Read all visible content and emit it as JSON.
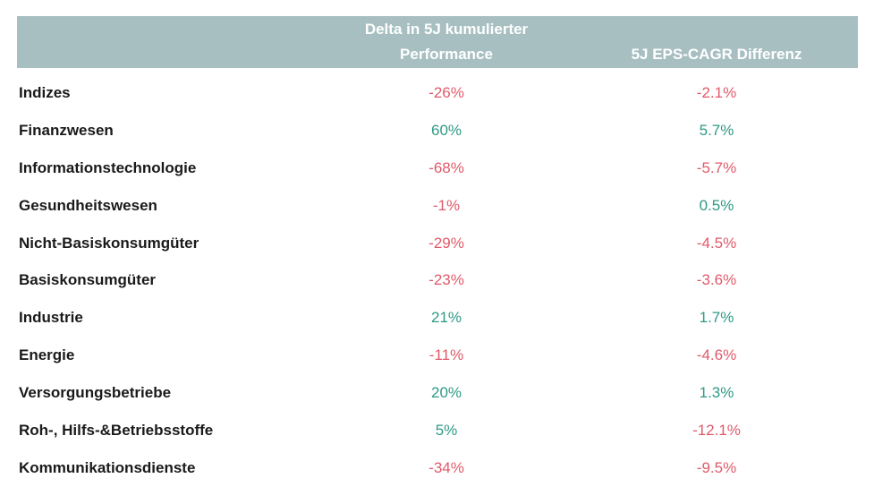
{
  "colors": {
    "header_bg": "#a8bfc2",
    "negative": "#e05a6a",
    "positive": "#2e9a86"
  },
  "table": {
    "headers": {
      "col1": "",
      "col2_line1": "Delta in 5J kumulierter",
      "col2_line2": "Performance",
      "col3": "5J EPS-CAGR Differenz"
    },
    "rows": [
      {
        "name": "Indizes",
        "performance": "-26%",
        "perf_sign": "neg",
        "eps": "-2.1%",
        "eps_sign": "neg"
      },
      {
        "name": "Finanzwesen",
        "performance": "60%",
        "perf_sign": "pos",
        "eps": "5.7%",
        "eps_sign": "pos"
      },
      {
        "name": "Informationstechnologie",
        "performance": "-68%",
        "perf_sign": "neg",
        "eps": "-5.7%",
        "eps_sign": "neg"
      },
      {
        "name": "Gesundheitswesen",
        "performance": "-1%",
        "perf_sign": "neg",
        "eps": "0.5%",
        "eps_sign": "pos"
      },
      {
        "name": "Nicht-Basiskonsumgüter",
        "performance": "-29%",
        "perf_sign": "neg",
        "eps": "-4.5%",
        "eps_sign": "neg"
      },
      {
        "name": "Basiskonsumgüter",
        "performance": "-23%",
        "perf_sign": "neg",
        "eps": "-3.6%",
        "eps_sign": "neg"
      },
      {
        "name": "Industrie",
        "performance": "21%",
        "perf_sign": "pos",
        "eps": "1.7%",
        "eps_sign": "pos"
      },
      {
        "name": "Energie",
        "performance": "-11%",
        "perf_sign": "neg",
        "eps": "-4.6%",
        "eps_sign": "neg"
      },
      {
        "name": "Versorgungsbetriebe",
        "performance": "20%",
        "perf_sign": "pos",
        "eps": "1.3%",
        "eps_sign": "pos"
      },
      {
        "name": "Roh-, Hilfs-&Betriebsstoffe",
        "performance": "5%",
        "perf_sign": "pos",
        "eps": "-12.1%",
        "eps_sign": "neg"
      },
      {
        "name": "Kommunikationsdienste",
        "performance": "-34%",
        "perf_sign": "neg",
        "eps": "-9.5%",
        "eps_sign": "neg"
      }
    ]
  }
}
